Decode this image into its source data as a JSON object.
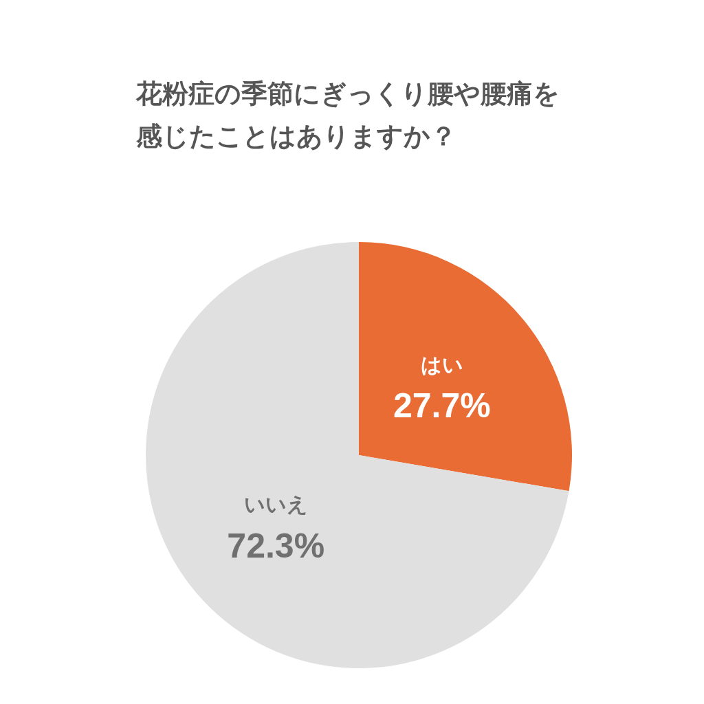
{
  "chart_data": {
    "type": "pie",
    "title": "花粉症の季節にぎっくり腰や腰痛を感じたことはありますか？",
    "categories": [
      "はい",
      "いいえ"
    ],
    "values": [
      27.7,
      72.3
    ],
    "colors": [
      "#e96c35",
      "#e0e0e0"
    ],
    "value_labels": [
      "27.7%",
      "72.3%"
    ],
    "legend": false
  }
}
